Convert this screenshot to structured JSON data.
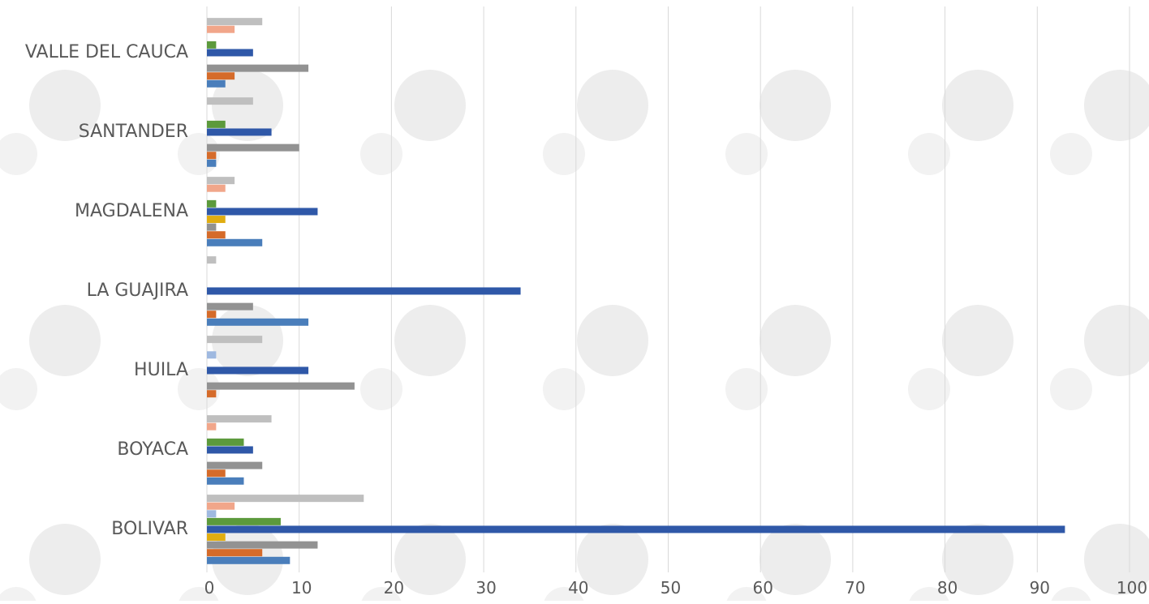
{
  "chart_data": {
    "type": "bar",
    "orientation": "horizontal",
    "title": "",
    "xlabel": "",
    "ylabel": "",
    "xlim": [
      0,
      100
    ],
    "x_ticks": [
      "0",
      "10",
      "20",
      "30",
      "40",
      "50",
      "60",
      "70",
      "80",
      "90",
      "100"
    ],
    "grid": true,
    "legend": "none",
    "categories": [
      "BOLIVAR",
      "BOYACA",
      "HUILA",
      "LA GUAJIRA",
      "MAGDALENA",
      "SANTANDER",
      "VALLE DEL CAUCA"
    ],
    "series": [
      {
        "color": "#4a7ebb",
        "values": [
          9,
          4,
          0,
          11,
          6,
          1,
          2
        ]
      },
      {
        "color": "#d56b2a",
        "values": [
          6,
          2,
          1,
          1,
          2,
          1,
          3
        ]
      },
      {
        "color": "#929292",
        "values": [
          12,
          6,
          16,
          5,
          1,
          10,
          11
        ]
      },
      {
        "color": "#e0ad11",
        "values": [
          2,
          0,
          0,
          0,
          2,
          0,
          0
        ]
      },
      {
        "color": "#2f58a8",
        "values": [
          93,
          5,
          11,
          34,
          12,
          7,
          5
        ]
      },
      {
        "color": "#5c9a3c",
        "values": [
          8,
          4,
          0,
          0,
          1,
          2,
          1
        ]
      },
      {
        "color": "#9fb9e0",
        "values": [
          1,
          0,
          1,
          0,
          0,
          0,
          0
        ]
      },
      {
        "color": "#f1a68a",
        "values": [
          3,
          1,
          0,
          0,
          2,
          0,
          3
        ]
      },
      {
        "color": "#bfbfbf",
        "values": [
          17,
          7,
          6,
          1,
          3,
          5,
          6
        ]
      }
    ]
  },
  "colors": {
    "grid": "#d9d9d9",
    "label": "#595959",
    "watermark": "#ededed"
  }
}
